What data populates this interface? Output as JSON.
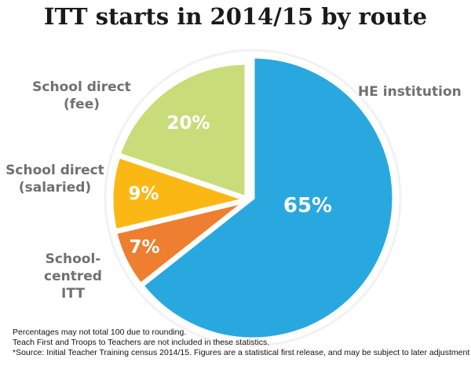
{
  "colors": {
    "he": "#29a8e0",
    "school_direct_fee": "#c9dc7a",
    "school_direct_salaried": "#fbb815",
    "school_centred": "#ee7f30",
    "label": "#707070",
    "background_disc": "#f2f2f2"
  },
  "chart_data": {
    "type": "pie",
    "title": "ITT starts in 2014/15 by route",
    "slices": [
      {
        "id": "he",
        "name": "HE institution",
        "value": 65,
        "label": "65%",
        "name_lines": [
          "HE institution"
        ]
      },
      {
        "id": "school_centred",
        "name": "School-centred ITT",
        "value": 7,
        "label": "7%",
        "name_lines": [
          "School-",
          "centred",
          "ITT"
        ]
      },
      {
        "id": "school_direct_salaried",
        "name": "School direct (salaried)",
        "value": 9,
        "label": "9%",
        "name_lines": [
          "School direct",
          "(salaried)"
        ]
      },
      {
        "id": "school_direct_fee",
        "name": "School direct (fee)",
        "value": 20,
        "label": "20%",
        "name_lines": [
          "School direct",
          "(fee)"
        ]
      }
    ]
  },
  "notes": [
    "Percentages may not total 100 due to rounding.",
    "Teach First and Troops to Teachers are not included in these statistics.",
    "*Source: Initial Teacher Training census 2014/15. Figures are a statistical first release, and may be subject to later adjustment"
  ]
}
